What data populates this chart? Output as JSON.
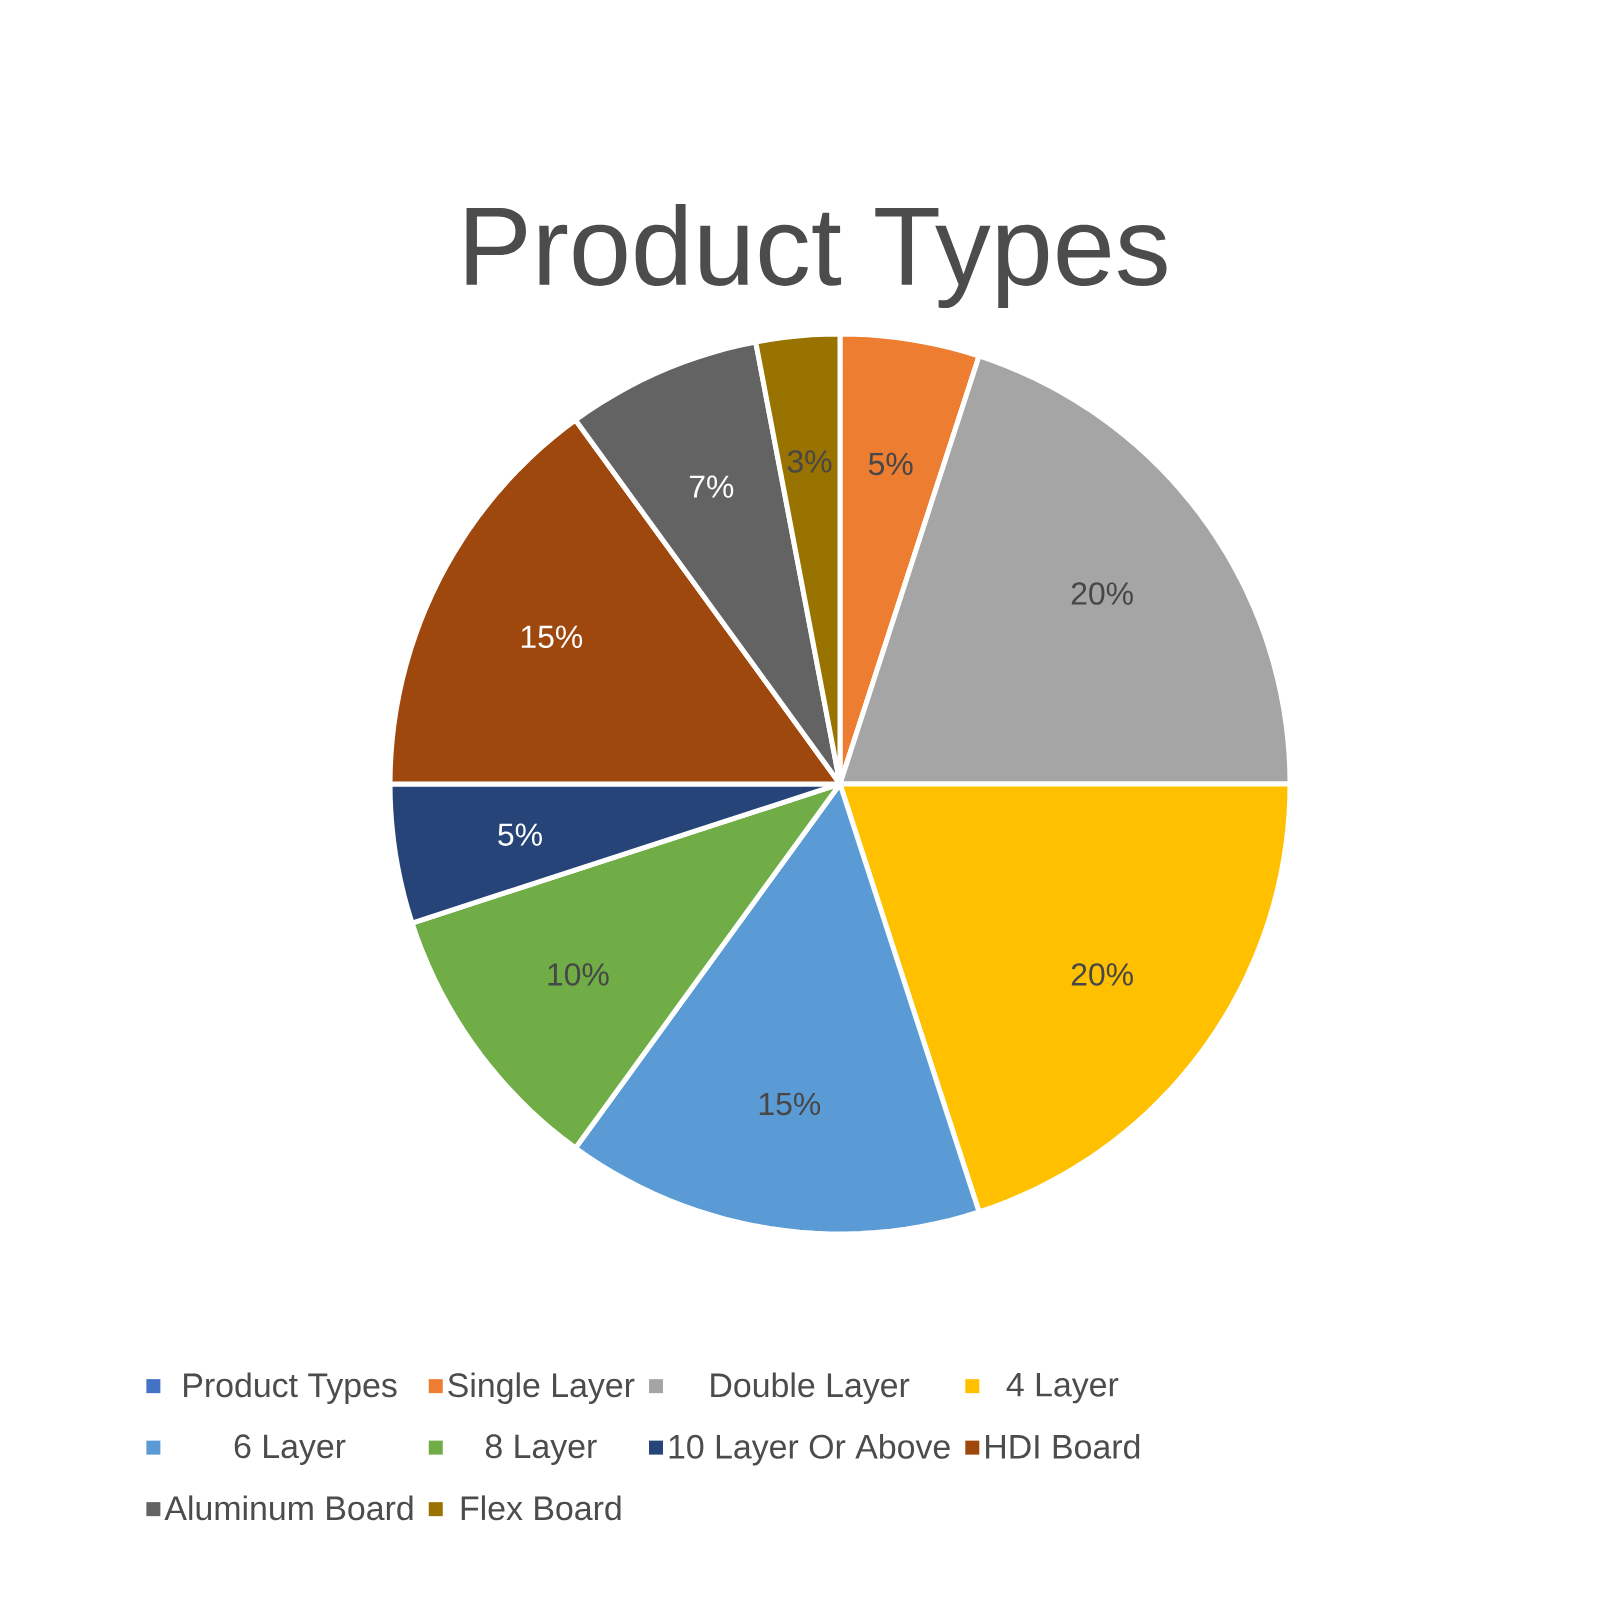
{
  "chart_data": {
    "type": "pie",
    "title": "Product Types",
    "categories": [
      "Product Types",
      "Single Layer",
      "Double Layer",
      "4 Layer",
      "6 Layer",
      "8 Layer",
      "10 Layer Or Above",
      "HDI Board",
      "Aluminum Board",
      "Flex Board"
    ],
    "values": [
      0,
      5,
      20,
      20,
      15,
      10,
      5,
      15,
      7,
      3
    ],
    "colors": [
      "#4472c4",
      "#ed7d31",
      "#a5a5a5",
      "#ffc000",
      "#5b9bd5",
      "#70ad47",
      "#264478",
      "#9e480e",
      "#636363",
      "#997300"
    ],
    "value_labels": [
      null,
      "5%",
      "20%",
      "20%",
      "15%",
      "10%",
      "5%",
      "15%",
      "7%",
      "3%"
    ],
    "legend": "bottom"
  }
}
